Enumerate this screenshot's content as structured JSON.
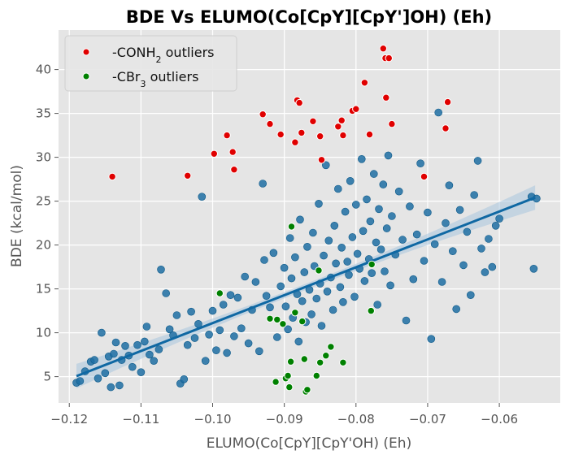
{
  "chart_data": {
    "type": "scatter",
    "title": "BDE Vs ELUMO(Co[CpY][CpY']OH) (Eh)",
    "xlabel": "ELUMO(Co[CpY][CpY'OH) (Eh)",
    "ylabel": "BDE (kcal/mol)",
    "xlim": [
      -0.1215,
      -0.0515
    ],
    "ylim": [
      2.0,
      44.5
    ],
    "x_ticks": [
      -0.12,
      -0.11,
      -0.1,
      -0.09,
      -0.08,
      -0.07,
      -0.06
    ],
    "x_tick_labels": [
      "−0.12",
      "−0.11",
      "−0.10",
      "−0.09",
      "−0.08",
      "−0.07",
      "−0.06"
    ],
    "y_ticks": [
      5,
      10,
      15,
      20,
      25,
      30,
      35,
      40
    ],
    "y_tick_labels": [
      "5",
      "10",
      "15",
      "20",
      "25",
      "30",
      "35",
      "40"
    ],
    "grid": true,
    "legend_position": "top-left",
    "colors": {
      "background": "#e5e5e5",
      "grid": "#ffffff",
      "main_points": "#1f6fa3",
      "regression_line": "#0f68a3",
      "confidence_band": "#a9c6de",
      "conh2_outliers": "#e00000",
      "cbr3_outliers": "#008000"
    },
    "regression": {
      "x_range": [
        -0.119,
        -0.055
      ],
      "slope": 318.0,
      "intercept": 42.9,
      "ci_halfwidth_edges": 1.4,
      "ci_halfwidth_center": 0.35
    },
    "series": [
      {
        "name": "-CONH2 outliers",
        "legend_parts": [
          "-CONH",
          "2",
          " outliers"
        ],
        "role": "conh2",
        "points": [
          [
            -0.114,
            27.8
          ],
          [
            -0.1035,
            27.9
          ],
          [
            -0.0998,
            30.4
          ],
          [
            -0.098,
            32.5
          ],
          [
            -0.0972,
            30.6
          ],
          [
            -0.097,
            28.6
          ],
          [
            -0.093,
            34.9
          ],
          [
            -0.092,
            33.8
          ],
          [
            -0.0905,
            32.6
          ],
          [
            -0.0885,
            31.7
          ],
          [
            -0.0882,
            36.5
          ],
          [
            -0.0879,
            36.2
          ],
          [
            -0.0876,
            32.8
          ],
          [
            -0.086,
            34.1
          ],
          [
            -0.085,
            32.4
          ],
          [
            -0.0848,
            29.7
          ],
          [
            -0.0825,
            33.5
          ],
          [
            -0.082,
            34.2
          ],
          [
            -0.0818,
            32.5
          ],
          [
            -0.0805,
            35.3
          ],
          [
            -0.08,
            35.5
          ],
          [
            -0.0788,
            38.5
          ],
          [
            -0.0781,
            32.6
          ],
          [
            -0.0762,
            42.4
          ],
          [
            -0.0759,
            41.3
          ],
          [
            -0.0758,
            36.8
          ],
          [
            -0.0754,
            41.3
          ],
          [
            -0.075,
            33.8
          ],
          [
            -0.0705,
            27.8
          ],
          [
            -0.0675,
            33.3
          ],
          [
            -0.0672,
            36.3
          ]
        ]
      },
      {
        "name": "-CBr3 outliers",
        "legend_parts": [
          "-CBr",
          "3",
          " outliers"
        ],
        "role": "cbr3",
        "points": [
          [
            -0.099,
            14.5
          ],
          [
            -0.092,
            11.6
          ],
          [
            -0.091,
            11.5
          ],
          [
            -0.0902,
            11.0
          ],
          [
            -0.0898,
            4.8
          ],
          [
            -0.0895,
            5.1
          ],
          [
            -0.0893,
            3.8
          ],
          [
            -0.0891,
            6.7
          ],
          [
            -0.089,
            22.1
          ],
          [
            -0.0885,
            12.3
          ],
          [
            -0.0875,
            11.3
          ],
          [
            -0.0872,
            7.0
          ],
          [
            -0.087,
            3.3
          ],
          [
            -0.0868,
            3.5
          ],
          [
            -0.0855,
            5.1
          ],
          [
            -0.0852,
            17.1
          ],
          [
            -0.085,
            6.6
          ],
          [
            -0.0842,
            7.4
          ],
          [
            -0.0835,
            8.4
          ],
          [
            -0.0818,
            6.6
          ],
          [
            -0.0778,
            17.8
          ],
          [
            -0.0779,
            12.5
          ],
          [
            -0.0912,
            4.4
          ]
        ]
      },
      {
        "name": "data",
        "role": "main",
        "points": [
          [
            -0.119,
            4.3
          ],
          [
            -0.1185,
            4.5
          ],
          [
            -0.1178,
            5.6
          ],
          [
            -0.117,
            6.7
          ],
          [
            -0.1165,
            6.9
          ],
          [
            -0.116,
            4.8
          ],
          [
            -0.1155,
            10.0
          ],
          [
            -0.115,
            5.4
          ],
          [
            -0.1145,
            7.3
          ],
          [
            -0.1142,
            3.8
          ],
          [
            -0.1138,
            7.6
          ],
          [
            -0.1135,
            8.9
          ],
          [
            -0.113,
            4.0
          ],
          [
            -0.1127,
            6.9
          ],
          [
            -0.1122,
            8.5
          ],
          [
            -0.1117,
            7.4
          ],
          [
            -0.1112,
            6.1
          ],
          [
            -0.1105,
            8.6
          ],
          [
            -0.11,
            5.5
          ],
          [
            -0.1095,
            9.0
          ],
          [
            -0.1092,
            10.7
          ],
          [
            -0.1088,
            7.5
          ],
          [
            -0.1082,
            6.8
          ],
          [
            -0.1075,
            8.1
          ],
          [
            -0.1072,
            17.2
          ],
          [
            -0.1065,
            14.5
          ],
          [
            -0.106,
            10.4
          ],
          [
            -0.1055,
            9.7
          ],
          [
            -0.105,
            12.0
          ],
          [
            -0.1045,
            4.2
          ],
          [
            -0.104,
            4.7
          ],
          [
            -0.1035,
            8.6
          ],
          [
            -0.103,
            12.4
          ],
          [
            -0.1025,
            9.4
          ],
          [
            -0.102,
            11.0
          ],
          [
            -0.1015,
            25.5
          ],
          [
            -0.101,
            6.8
          ],
          [
            -0.1005,
            9.8
          ],
          [
            -0.1,
            12.5
          ],
          [
            -0.0995,
            8.0
          ],
          [
            -0.099,
            10.3
          ],
          [
            -0.0985,
            13.2
          ],
          [
            -0.098,
            7.7
          ],
          [
            -0.0975,
            14.3
          ],
          [
            -0.097,
            9.6
          ],
          [
            -0.0965,
            14.0
          ],
          [
            -0.096,
            10.5
          ],
          [
            -0.0955,
            16.4
          ],
          [
            -0.095,
            8.8
          ],
          [
            -0.0945,
            12.6
          ],
          [
            -0.094,
            15.8
          ],
          [
            -0.0935,
            7.9
          ],
          [
            -0.093,
            27.0
          ],
          [
            -0.0928,
            18.3
          ],
          [
            -0.0925,
            14.2
          ],
          [
            -0.092,
            12.9
          ],
          [
            -0.0915,
            19.1
          ],
          [
            -0.091,
            9.5
          ],
          [
            -0.0905,
            15.3
          ],
          [
            -0.09,
            17.4
          ],
          [
            -0.0898,
            13.0
          ],
          [
            -0.0895,
            10.4
          ],
          [
            -0.0892,
            20.8
          ],
          [
            -0.089,
            16.2
          ],
          [
            -0.0888,
            11.7
          ],
          [
            -0.0885,
            18.6
          ],
          [
            -0.0882,
            14.4
          ],
          [
            -0.088,
            9.0
          ],
          [
            -0.0878,
            22.9
          ],
          [
            -0.0875,
            13.6
          ],
          [
            -0.0872,
            16.9
          ],
          [
            -0.087,
            11.2
          ],
          [
            -0.0868,
            19.8
          ],
          [
            -0.0865,
            14.9
          ],
          [
            -0.0862,
            12.1
          ],
          [
            -0.086,
            21.4
          ],
          [
            -0.0858,
            17.6
          ],
          [
            -0.0855,
            13.9
          ],
          [
            -0.0852,
            24.7
          ],
          [
            -0.085,
            15.6
          ],
          [
            -0.0848,
            10.8
          ],
          [
            -0.0845,
            18.8
          ],
          [
            -0.0842,
            29.1
          ],
          [
            -0.084,
            14.7
          ],
          [
            -0.0838,
            20.5
          ],
          [
            -0.0835,
            16.3
          ],
          [
            -0.0832,
            12.6
          ],
          [
            -0.083,
            22.2
          ],
          [
            -0.0828,
            17.9
          ],
          [
            -0.0825,
            26.4
          ],
          [
            -0.0822,
            15.2
          ],
          [
            -0.082,
            19.7
          ],
          [
            -0.0818,
            13.5
          ],
          [
            -0.0815,
            23.8
          ],
          [
            -0.0812,
            18.1
          ],
          [
            -0.081,
            16.6
          ],
          [
            -0.0808,
            27.3
          ],
          [
            -0.0805,
            20.9
          ],
          [
            -0.0802,
            14.1
          ],
          [
            -0.08,
            24.6
          ],
          [
            -0.0798,
            19.0
          ],
          [
            -0.0795,
            17.3
          ],
          [
            -0.0792,
            29.8
          ],
          [
            -0.079,
            21.6
          ],
          [
            -0.0788,
            15.9
          ],
          [
            -0.0785,
            25.2
          ],
          [
            -0.0782,
            18.4
          ],
          [
            -0.078,
            22.7
          ],
          [
            -0.0778,
            16.8
          ],
          [
            -0.0775,
            28.1
          ],
          [
            -0.0772,
            20.3
          ],
          [
            -0.077,
            13.2
          ],
          [
            -0.0768,
            24.1
          ],
          [
            -0.0765,
            19.5
          ],
          [
            -0.0762,
            26.9
          ],
          [
            -0.076,
            17.0
          ],
          [
            -0.0757,
            21.9
          ],
          [
            -0.0755,
            30.2
          ],
          [
            -0.0752,
            15.4
          ],
          [
            -0.075,
            23.3
          ],
          [
            -0.0745,
            18.9
          ],
          [
            -0.074,
            26.1
          ],
          [
            -0.0735,
            20.6
          ],
          [
            -0.073,
            11.4
          ],
          [
            -0.0725,
            24.4
          ],
          [
            -0.072,
            16.1
          ],
          [
            -0.0715,
            21.2
          ],
          [
            -0.071,
            29.3
          ],
          [
            -0.0705,
            18.2
          ],
          [
            -0.07,
            23.7
          ],
          [
            -0.0695,
            9.3
          ],
          [
            -0.069,
            20.1
          ],
          [
            -0.0685,
            35.1
          ],
          [
            -0.068,
            15.8
          ],
          [
            -0.0675,
            22.5
          ],
          [
            -0.067,
            26.8
          ],
          [
            -0.0665,
            19.3
          ],
          [
            -0.066,
            12.7
          ],
          [
            -0.0655,
            24.0
          ],
          [
            -0.065,
            17.7
          ],
          [
            -0.0645,
            21.5
          ],
          [
            -0.064,
            14.3
          ],
          [
            -0.0635,
            25.7
          ],
          [
            -0.063,
            29.6
          ],
          [
            -0.0625,
            19.6
          ],
          [
            -0.062,
            16.9
          ],
          [
            -0.0615,
            20.7
          ],
          [
            -0.061,
            17.5
          ],
          [
            -0.0605,
            22.2
          ],
          [
            -0.06,
            23.0
          ],
          [
            -0.0555,
            25.5
          ],
          [
            -0.0548,
            25.3
          ],
          [
            -0.0552,
            17.3
          ]
        ]
      }
    ]
  }
}
